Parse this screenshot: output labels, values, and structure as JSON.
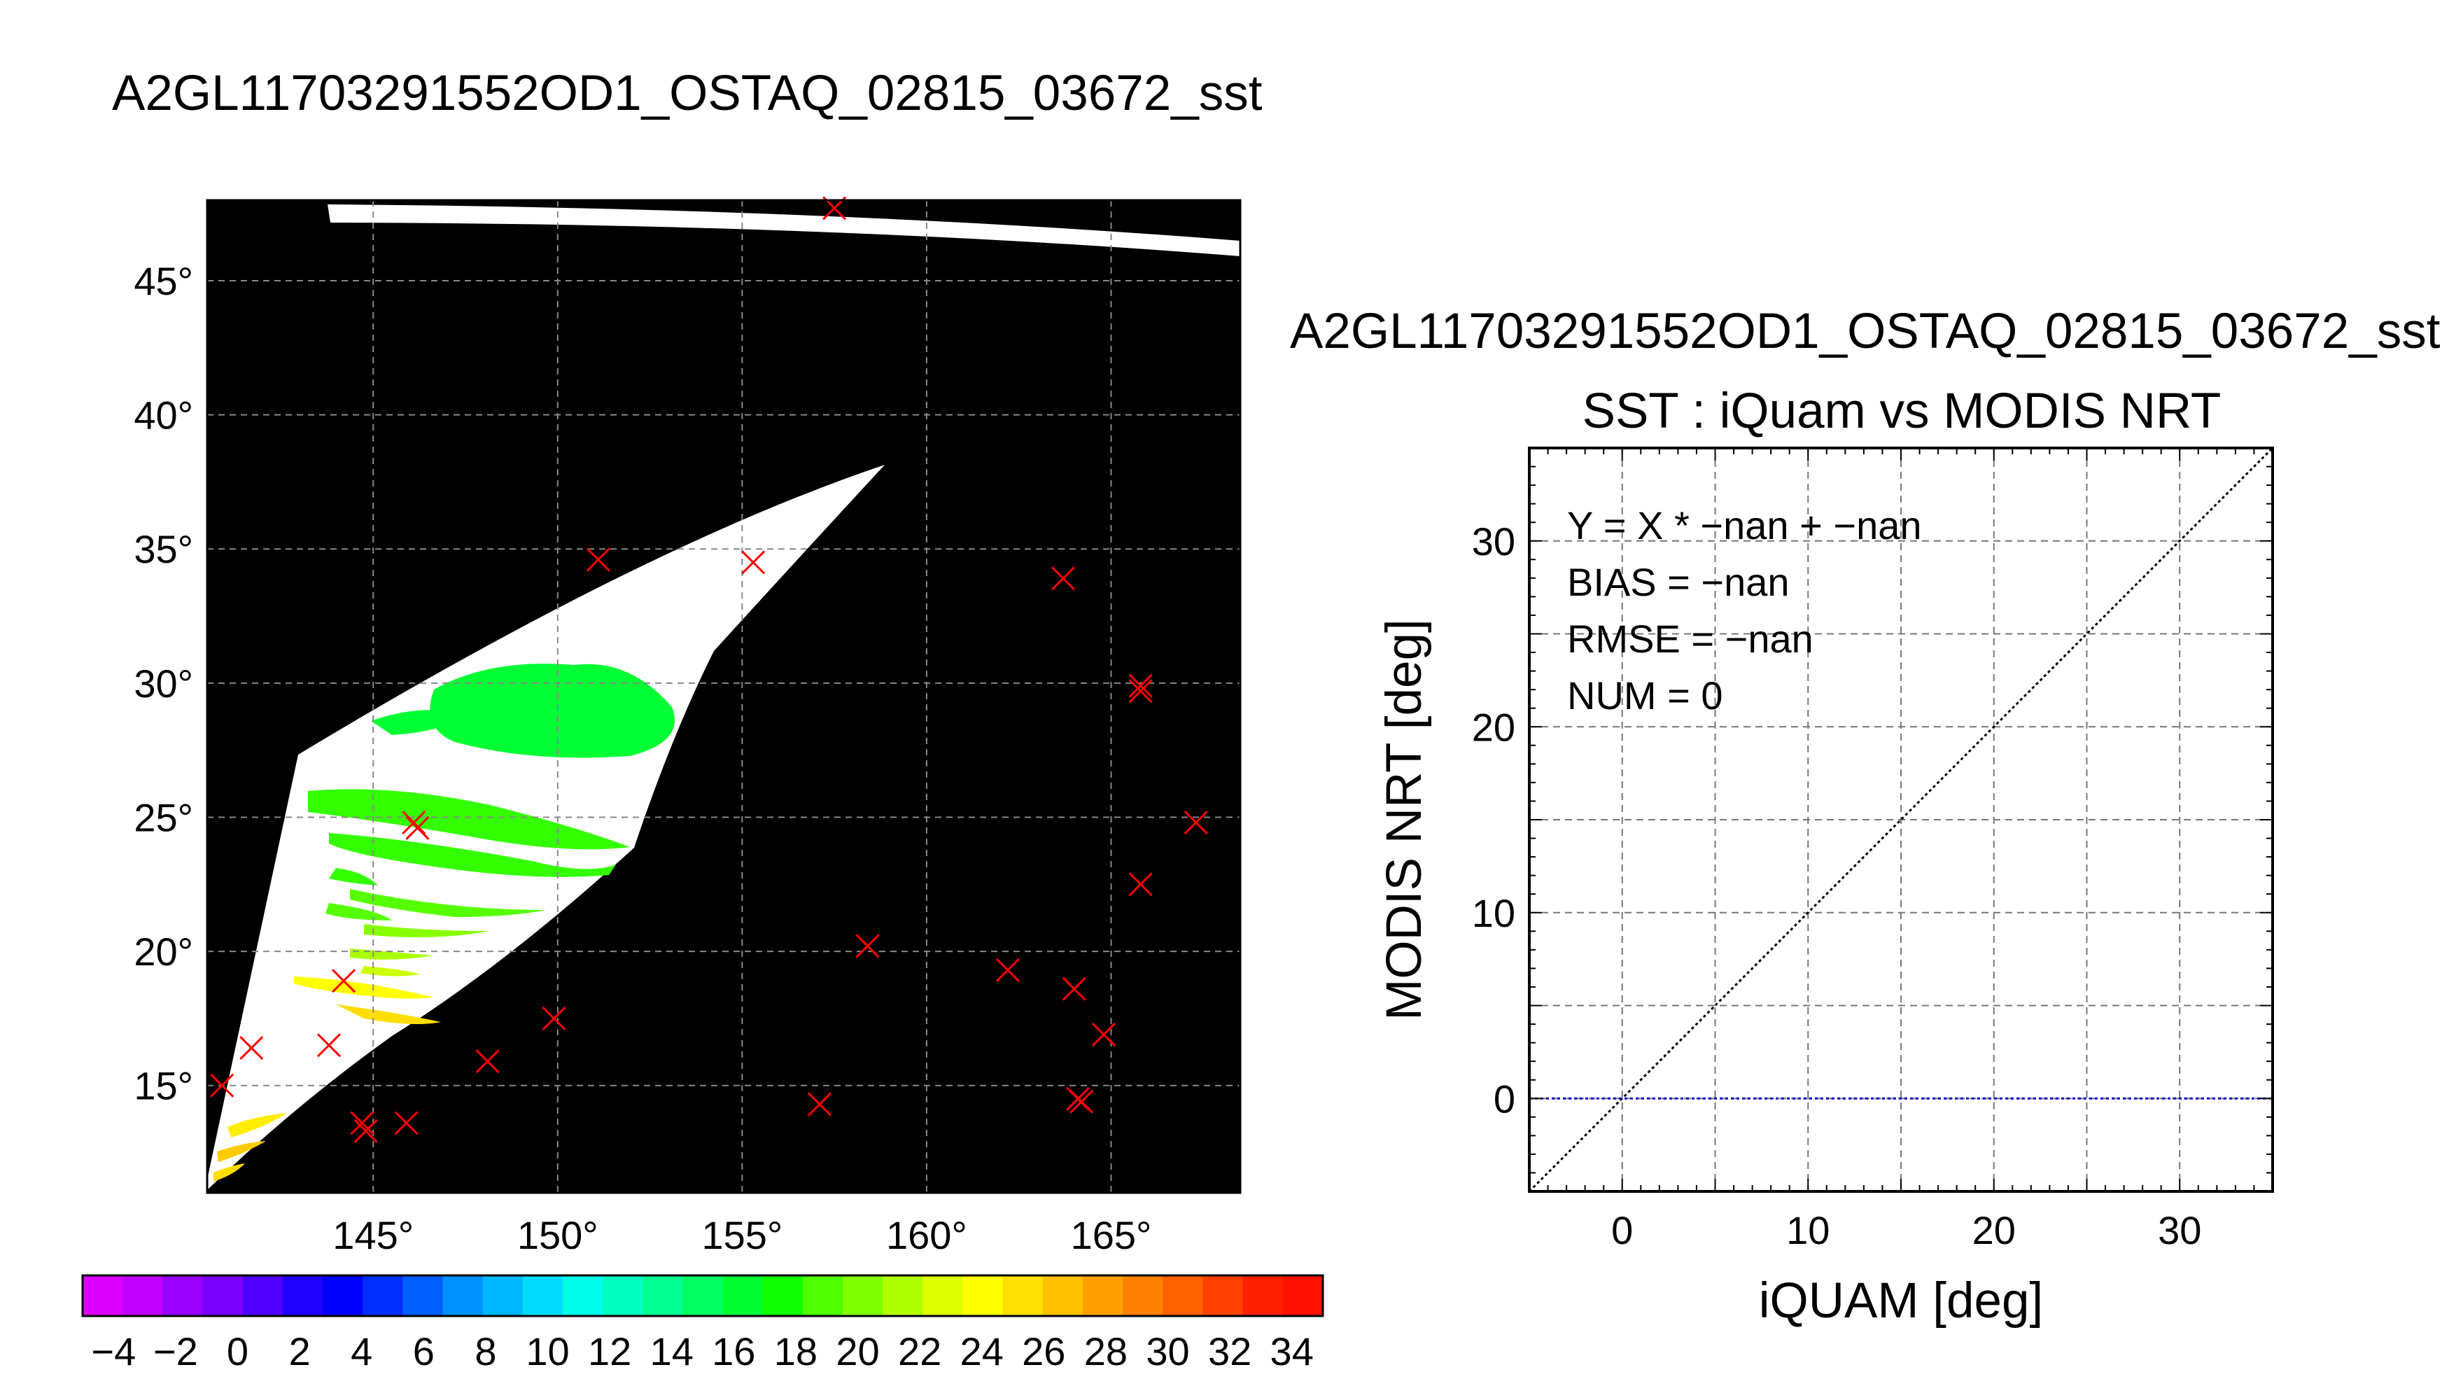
{
  "chart_data": [
    {
      "type": "map",
      "title": "A2GL11703291552OD1_OSTAQ_02815_03672_sst",
      "lon_ticks": [
        "145°",
        "150°",
        "155°",
        "160°",
        "165°"
      ],
      "lon_values": [
        145,
        150,
        155,
        160,
        165
      ],
      "lat_ticks": [
        "15°",
        "20°",
        "25°",
        "30°",
        "35°",
        "40°",
        "45°"
      ],
      "lat_values": [
        15,
        20,
        25,
        30,
        35,
        40,
        45
      ],
      "xlim": [
        140.5,
        168.5
      ],
      "ylim": [
        11,
        48
      ],
      "background_color": "#000000",
      "swath_color": "#ffffff",
      "grid": true,
      "marker": "x",
      "marker_color": "#ff0000",
      "buoy_points": [
        {
          "lon": 157.5,
          "lat": 47.7
        },
        {
          "lon": 151.1,
          "lat": 34.6
        },
        {
          "lon": 155.3,
          "lat": 34.5
        },
        {
          "lon": 163.7,
          "lat": 33.9
        },
        {
          "lon": 165.8,
          "lat": 29.9
        },
        {
          "lon": 165.8,
          "lat": 29.7
        },
        {
          "lon": 146.1,
          "lat": 24.8
        },
        {
          "lon": 146.2,
          "lat": 24.6
        },
        {
          "lon": 167.3,
          "lat": 24.8
        },
        {
          "lon": 165.8,
          "lat": 22.5
        },
        {
          "lon": 158.4,
          "lat": 20.2
        },
        {
          "lon": 162.2,
          "lat": 19.3
        },
        {
          "lon": 144.2,
          "lat": 18.9
        },
        {
          "lon": 164.0,
          "lat": 18.6
        },
        {
          "lon": 149.9,
          "lat": 17.5
        },
        {
          "lon": 164.8,
          "lat": 16.9
        },
        {
          "lon": 141.7,
          "lat": 16.4
        },
        {
          "lon": 143.8,
          "lat": 16.5
        },
        {
          "lon": 148.1,
          "lat": 15.9
        },
        {
          "lon": 140.9,
          "lat": 15.0
        },
        {
          "lon": 164.1,
          "lat": 14.5
        },
        {
          "lon": 164.2,
          "lat": 14.4
        },
        {
          "lon": 157.1,
          "lat": 14.3
        },
        {
          "lon": 144.7,
          "lat": 13.6
        },
        {
          "lon": 144.8,
          "lat": 13.3
        },
        {
          "lon": 145.9,
          "lat": 13.6
        }
      ]
    },
    {
      "type": "colorbar",
      "tick_labels": [
        "−4",
        "−2",
        "0",
        "2",
        "4",
        "6",
        "8",
        "10",
        "12",
        "14",
        "16",
        "18",
        "20",
        "22",
        "24",
        "26",
        "28",
        "30",
        "32",
        "34"
      ],
      "range": [
        -5,
        35
      ],
      "colors": [
        "#dd00ff",
        "#c000ff",
        "#9a00ff",
        "#7a00ff",
        "#5000ff",
        "#2000ff",
        "#0000ff",
        "#0030ff",
        "#0060ff",
        "#0090ff",
        "#00b8ff",
        "#00dcff",
        "#00ffea",
        "#00ffc0",
        "#00ff90",
        "#00ff60",
        "#00ff30",
        "#10ff00",
        "#50ff00",
        "#80ff00",
        "#b0ff00",
        "#dcff00",
        "#ffff00",
        "#ffe000",
        "#ffc000",
        "#ffa000",
        "#ff8000",
        "#ff6000",
        "#ff4000",
        "#ff2000",
        "#ff1000"
      ]
    },
    {
      "type": "scatter",
      "title": "A2GL11703291552OD1_OSTAQ_02815_03672_sst",
      "subtitle": "SST : iQuam vs MODIS NRT",
      "xlabel": "iQUAM [deg]",
      "ylabel": "MODIS NRT [deg]",
      "xlim": [
        -5,
        35
      ],
      "ylim": [
        -5,
        35
      ],
      "xticks": [
        0,
        10,
        20,
        30
      ],
      "yticks": [
        0,
        10,
        20,
        30
      ],
      "grid": true,
      "stats": [
        "Y = X * −nan + −nan",
        "BIAS = −nan",
        "RMSE = −nan",
        "NUM = 0"
      ],
      "lines": [
        {
          "kind": "identity",
          "style": "dotted",
          "color": "#000000"
        },
        {
          "kind": "zero",
          "y": 0,
          "style": "dotted",
          "color": "#0000c8"
        }
      ],
      "points": []
    }
  ]
}
